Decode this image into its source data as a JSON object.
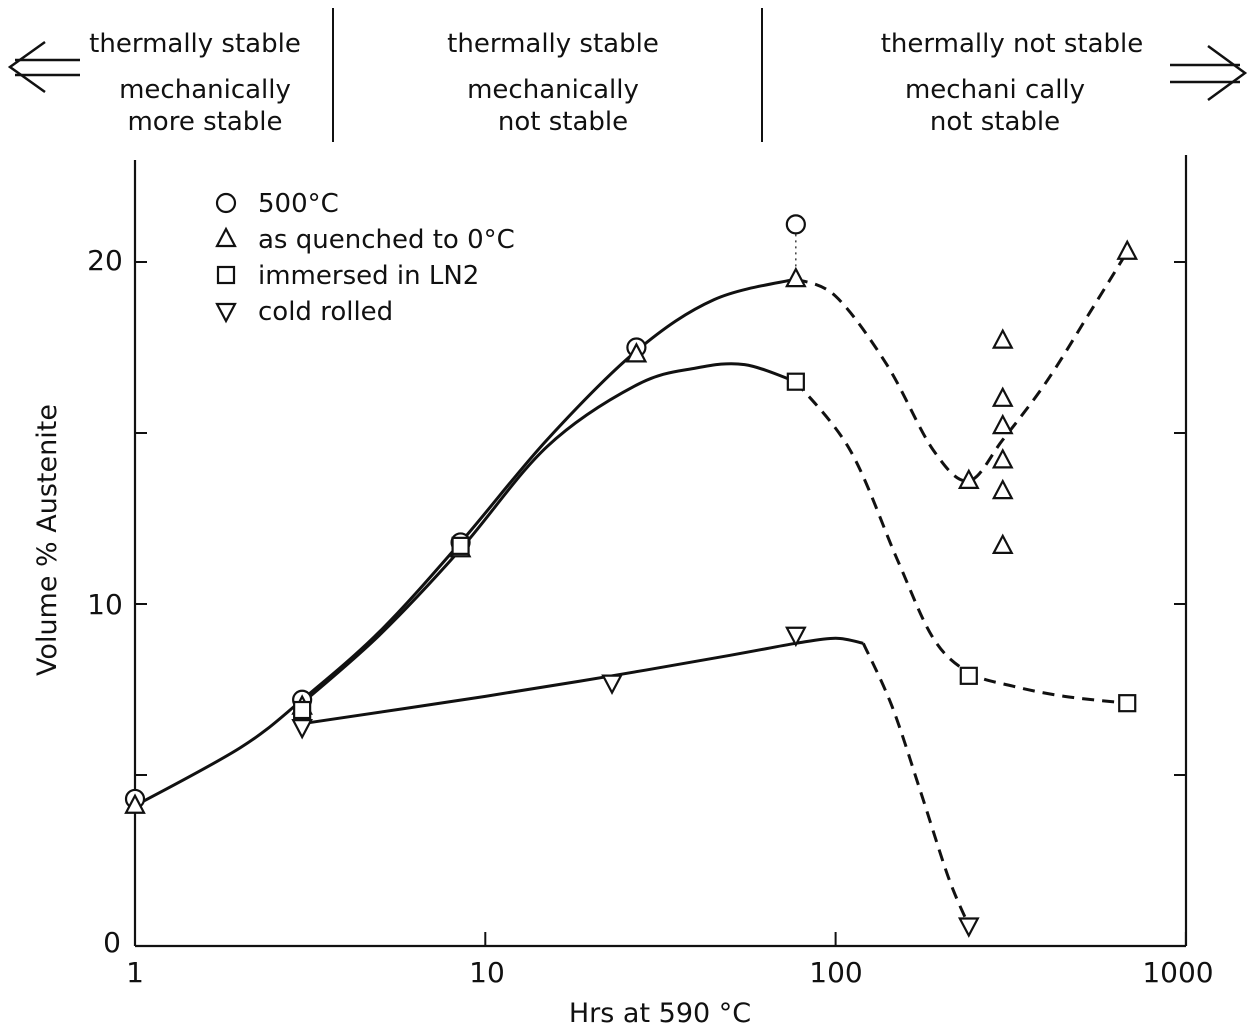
{
  "regions": [
    {
      "line1": "thermally stable",
      "line2": "mechanically",
      "line3": "more stable"
    },
    {
      "line1": "thermally stable",
      "line2": "mechanically",
      "line3": "not  stable"
    },
    {
      "line1": "thermally not stable",
      "line2": "mechani cally",
      "line3": "not stable"
    }
  ],
  "chart_data": {
    "type": "scatter",
    "title": "",
    "xlabel": "Hrs at 590 °C",
    "ylabel": "Volume % Austenite",
    "xscale": "log",
    "xlim": [
      1,
      1000
    ],
    "ylim": [
      0,
      22
    ],
    "x_ticks": [
      "1",
      "10",
      "100",
      "1000"
    ],
    "y_ticks": [
      "0",
      "10",
      "20"
    ],
    "legend_position": "top-left",
    "grid": false,
    "series": [
      {
        "name": "500°C",
        "marker": "circle",
        "points": [
          [
            1,
            4.3
          ],
          [
            3,
            7.2
          ],
          [
            8.5,
            11.8
          ],
          [
            27,
            17.5
          ],
          [
            77,
            21.1
          ]
        ],
        "curve": [
          [
            1,
            4.1
          ],
          [
            2,
            5.8
          ],
          [
            3,
            7.2
          ],
          [
            5,
            9.2
          ],
          [
            8.5,
            11.8
          ],
          [
            15,
            14.8
          ],
          [
            27,
            17.4
          ],
          [
            45,
            18.9
          ],
          [
            77,
            19.5
          ]
        ],
        "curve_style": "solid"
      },
      {
        "name": "as quenched to 0°C",
        "marker": "triangle",
        "points": [
          [
            1,
            4.1
          ],
          [
            3,
            7.0
          ],
          [
            8.5,
            11.6
          ],
          [
            27,
            17.3
          ],
          [
            77,
            19.5
          ],
          [
            240,
            13.6
          ],
          [
            300,
            17.7
          ],
          [
            300,
            16.0
          ],
          [
            300,
            15.2
          ],
          [
            300,
            14.2
          ],
          [
            300,
            13.3
          ],
          [
            300,
            11.7
          ],
          [
            680,
            20.3
          ]
        ],
        "curve": [
          [
            77,
            19.5
          ],
          [
            100,
            19.0
          ],
          [
            140,
            17.0
          ],
          [
            190,
            14.5
          ],
          [
            240,
            13.6
          ],
          [
            300,
            14.8
          ],
          [
            400,
            16.5
          ],
          [
            530,
            18.5
          ],
          [
            680,
            20.3
          ]
        ],
        "curve_style": "dashed"
      },
      {
        "name": "immersed in LN2",
        "marker": "square",
        "points": [
          [
            3,
            6.9
          ],
          [
            8.5,
            11.7
          ],
          [
            77,
            16.5
          ],
          [
            240,
            7.9
          ],
          [
            680,
            7.1
          ]
        ],
        "curve": [
          [
            3,
            7.1
          ],
          [
            5,
            9.1
          ],
          [
            8.5,
            11.6
          ],
          [
            15,
            14.6
          ],
          [
            27,
            16.4
          ],
          [
            40,
            16.9
          ],
          [
            55,
            17.0
          ],
          [
            77,
            16.5
          ]
        ],
        "dashed_curve": [
          [
            77,
            16.5
          ],
          [
            110,
            14.5
          ],
          [
            150,
            11.3
          ],
          [
            190,
            9.0
          ],
          [
            240,
            8.0
          ],
          [
            320,
            7.6
          ],
          [
            450,
            7.3
          ],
          [
            680,
            7.1
          ]
        ],
        "curve_style": "solid+dashed"
      },
      {
        "name": "cold rolled",
        "marker": "triangle-down",
        "points": [
          [
            3,
            6.4
          ],
          [
            23,
            7.7
          ],
          [
            77,
            9.1
          ],
          [
            240,
            0.6
          ]
        ],
        "curve": [
          [
            3,
            6.5
          ],
          [
            10,
            7.3
          ],
          [
            23,
            7.9
          ],
          [
            50,
            8.5
          ],
          [
            77,
            8.85
          ],
          [
            100,
            9.0
          ],
          [
            120,
            8.85
          ]
        ],
        "dashed_curve": [
          [
            120,
            8.85
          ],
          [
            145,
            7.0
          ],
          [
            175,
            4.5
          ],
          [
            210,
            2.0
          ],
          [
            240,
            0.6
          ]
        ],
        "curve_style": "solid+dashed"
      }
    ],
    "annotations": {
      "dotted_link": [
        [
          77,
          21.1
        ],
        [
          77,
          19.5
        ]
      ]
    }
  }
}
